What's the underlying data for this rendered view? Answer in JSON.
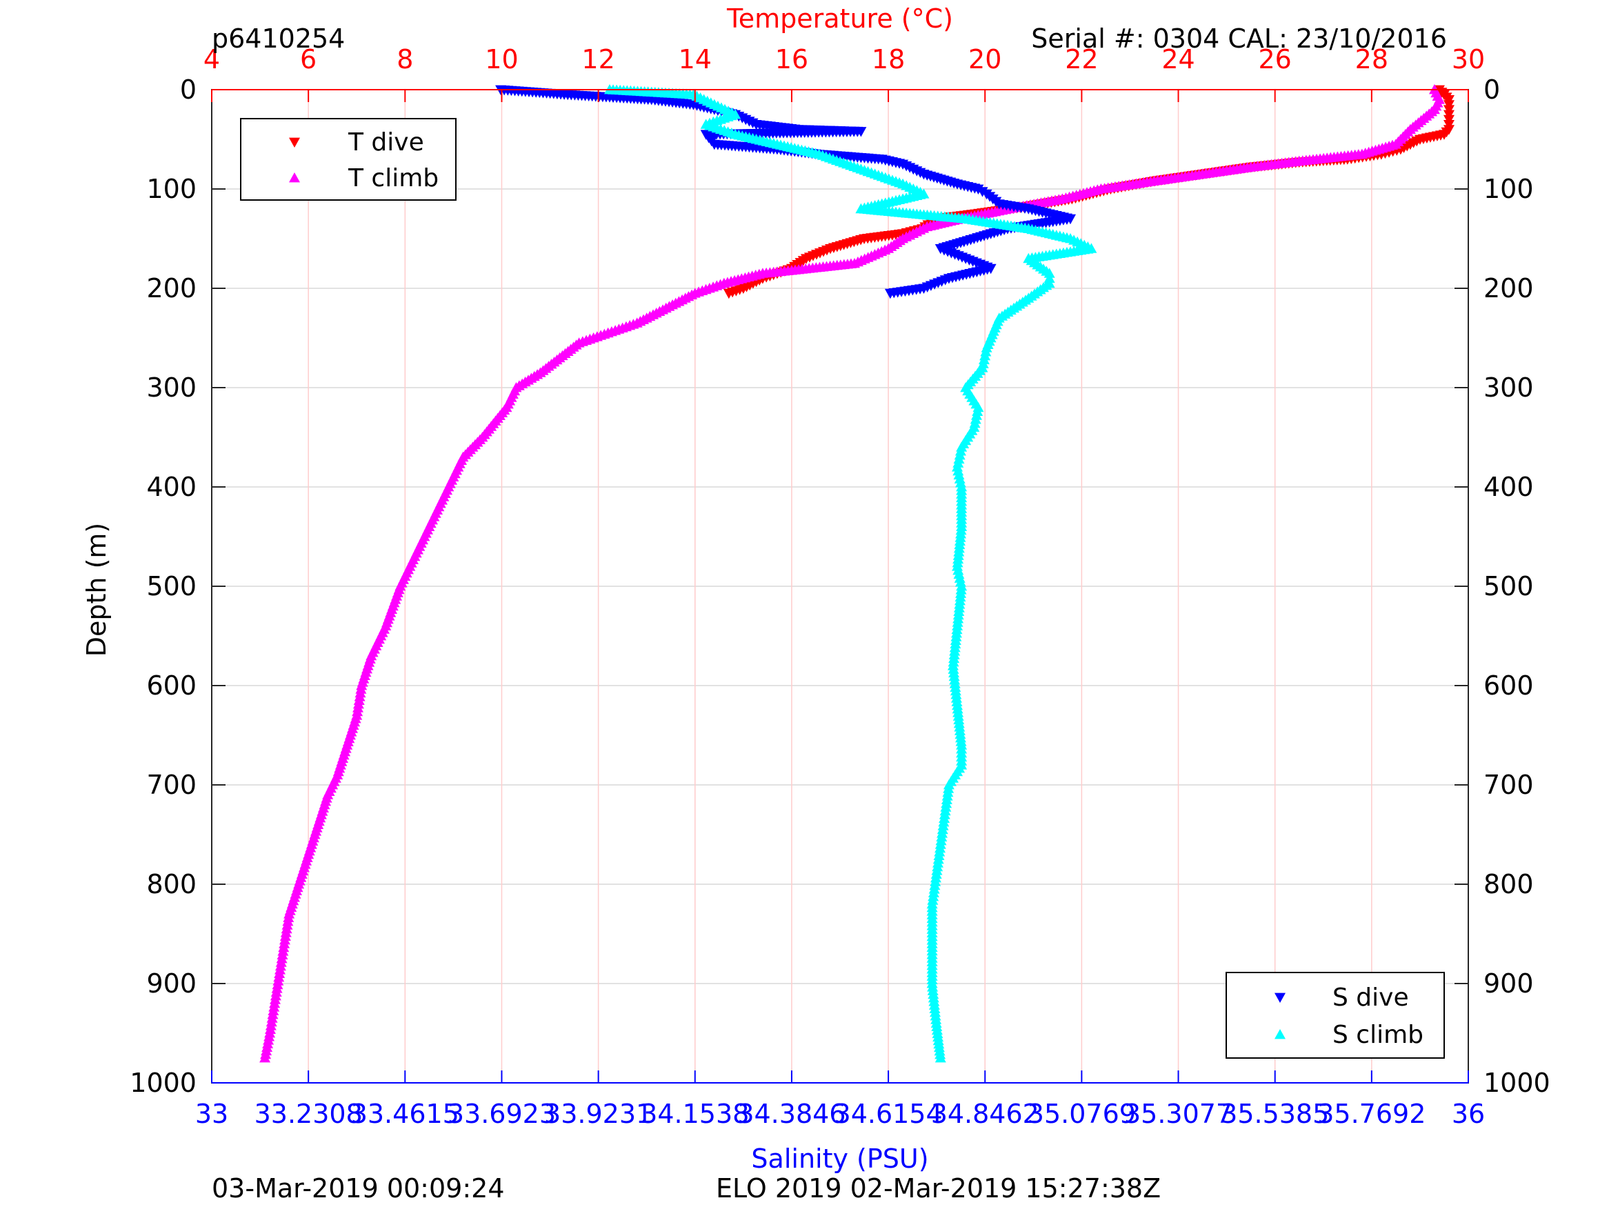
{
  "header": {
    "id": "p6410254",
    "serial": "Serial #: 0304  CAL: 23/10/2016"
  },
  "footer": {
    "left": "03-Mar-2019 00:09:24",
    "right": "ELO 2019 02-Mar-2019 15:27:38Z"
  },
  "colors": {
    "t_dive": "#ff0000",
    "t_climb": "#ff00ff",
    "s_dive": "#0000ff",
    "s_climb": "#00ffff",
    "temperature_axis": "#ff0000",
    "salinity_axis": "#0000ff"
  },
  "chart_data": {
    "type": "scatter",
    "y_axis": {
      "label": "Depth (m)",
      "range": [
        0,
        1000
      ],
      "reversed": true,
      "ticks": [
        0,
        100,
        200,
        300,
        400,
        500,
        600,
        700,
        800,
        900,
        1000
      ],
      "tick_labels": [
        "0",
        "100",
        "200",
        "300",
        "400",
        "500",
        "600",
        "700",
        "800",
        "900",
        "1000"
      ]
    },
    "temperature_axis": {
      "label": "Temperature (°C)",
      "position": "top",
      "range": [
        4,
        30
      ],
      "ticks": [
        4,
        6,
        8,
        10,
        12,
        14,
        16,
        18,
        20,
        22,
        24,
        26,
        28,
        30
      ],
      "tick_labels": [
        "4",
        "6",
        "8",
        "10",
        "12",
        "14",
        "16",
        "18",
        "20",
        "22",
        "24",
        "26",
        "28",
        "30"
      ]
    },
    "salinity_axis": {
      "label": "Salinity (PSU)",
      "position": "bottom",
      "range": [
        33,
        36
      ],
      "ticks": [
        33,
        33.2308,
        33.4615,
        33.6923,
        33.9231,
        34.1538,
        34.3846,
        34.6154,
        34.8462,
        35.0769,
        35.3077,
        35.5385,
        35.7692,
        36
      ],
      "tick_labels": [
        "33",
        "33.2308",
        "33.4615",
        "33.6923",
        "33.9231",
        "34.1538",
        "34.3846",
        "34.6154",
        "34.8462",
        "35.0769",
        "35.3077",
        "35.5385",
        "35.7692",
        "36"
      ]
    },
    "grid": true,
    "legends": [
      {
        "placement": "top-left",
        "entries": [
          "T dive",
          "T climb"
        ]
      },
      {
        "placement": "bottom-right",
        "entries": [
          "S dive",
          "S climb"
        ]
      }
    ],
    "series": [
      {
        "name": "T dive",
        "axis": "temperature",
        "marker": "triangle-down",
        "color": "#ff0000",
        "points": [
          [
            29.4,
            0
          ],
          [
            29.6,
            10
          ],
          [
            29.6,
            20
          ],
          [
            29.6,
            30
          ],
          [
            29.6,
            40
          ],
          [
            29.5,
            45
          ],
          [
            29.0,
            50
          ],
          [
            28.6,
            60
          ],
          [
            28.2,
            65
          ],
          [
            27.5,
            70
          ],
          [
            26.5,
            73
          ],
          [
            25.5,
            78
          ],
          [
            24.5,
            85
          ],
          [
            23.5,
            92
          ],
          [
            22.6,
            100
          ],
          [
            21.8,
            110
          ],
          [
            20.8,
            118
          ],
          [
            19.8,
            125
          ],
          [
            19.0,
            130
          ],
          [
            18.7,
            140
          ],
          [
            18.3,
            145
          ],
          [
            17.5,
            150
          ],
          [
            16.8,
            160
          ],
          [
            16.3,
            170
          ],
          [
            16.0,
            180
          ],
          [
            15.4,
            190
          ],
          [
            15.0,
            200
          ],
          [
            14.7,
            205
          ]
        ]
      },
      {
        "name": "T climb",
        "axis": "temperature",
        "marker": "triangle-up",
        "color": "#ff00ff",
        "points": [
          [
            29.3,
            0
          ],
          [
            29.4,
            10
          ],
          [
            29.3,
            20
          ],
          [
            28.8,
            40
          ],
          [
            28.5,
            55
          ],
          [
            27.8,
            65
          ],
          [
            26.5,
            72
          ],
          [
            25.5,
            78
          ],
          [
            24.5,
            85
          ],
          [
            23.5,
            92
          ],
          [
            22.4,
            100
          ],
          [
            21.6,
            110
          ],
          [
            20.5,
            120
          ],
          [
            19.5,
            130
          ],
          [
            18.8,
            138
          ],
          [
            18.3,
            150
          ],
          [
            18.0,
            160
          ],
          [
            17.3,
            175
          ],
          [
            16.0,
            182
          ],
          [
            15.4,
            185
          ],
          [
            14.6,
            195
          ],
          [
            14.0,
            205
          ],
          [
            13.4,
            220
          ],
          [
            12.8,
            235
          ],
          [
            12.2,
            245
          ],
          [
            11.6,
            255
          ],
          [
            11.2,
            270
          ],
          [
            10.8,
            285
          ],
          [
            10.3,
            300
          ],
          [
            10.1,
            320
          ],
          [
            9.6,
            350
          ],
          [
            9.2,
            370
          ],
          [
            8.9,
            400
          ],
          [
            8.5,
            440
          ],
          [
            8.1,
            480
          ],
          [
            7.9,
            500
          ],
          [
            7.6,
            540
          ],
          [
            7.3,
            570
          ],
          [
            7.1,
            600
          ],
          [
            7.0,
            630
          ],
          [
            6.8,
            660
          ],
          [
            6.6,
            690
          ],
          [
            6.4,
            710
          ],
          [
            6.2,
            740
          ],
          [
            6.0,
            770
          ],
          [
            5.8,
            800
          ],
          [
            5.6,
            830
          ],
          [
            5.5,
            860
          ],
          [
            5.4,
            890
          ],
          [
            5.3,
            920
          ],
          [
            5.2,
            950
          ],
          [
            5.1,
            975
          ]
        ]
      },
      {
        "name": "S dive",
        "axis": "salinity",
        "marker": "triangle-down",
        "color": "#0000ff",
        "points": [
          [
            33.69,
            0
          ],
          [
            33.85,
            5
          ],
          [
            34.05,
            10
          ],
          [
            34.15,
            15
          ],
          [
            34.25,
            25
          ],
          [
            34.3,
            35
          ],
          [
            34.4,
            40
          ],
          [
            34.55,
            42
          ],
          [
            34.18,
            45
          ],
          [
            34.2,
            55
          ],
          [
            34.35,
            60
          ],
          [
            34.45,
            65
          ],
          [
            34.6,
            70
          ],
          [
            34.65,
            75
          ],
          [
            34.7,
            85
          ],
          [
            34.78,
            95
          ],
          [
            34.83,
            100
          ],
          [
            34.85,
            105
          ],
          [
            34.88,
            115
          ],
          [
            34.95,
            120
          ],
          [
            35.0,
            125
          ],
          [
            35.05,
            130
          ],
          [
            34.9,
            140
          ],
          [
            34.82,
            150
          ],
          [
            34.74,
            160
          ],
          [
            34.8,
            170
          ],
          [
            34.86,
            180
          ],
          [
            34.76,
            190
          ],
          [
            34.7,
            200
          ],
          [
            34.62,
            205
          ]
        ]
      },
      {
        "name": "S climb",
        "axis": "salinity",
        "marker": "triangle-up",
        "color": "#00ffff",
        "points": [
          [
            33.95,
            0
          ],
          [
            34.15,
            5
          ],
          [
            34.2,
            15
          ],
          [
            34.25,
            25
          ],
          [
            34.18,
            35
          ],
          [
            34.25,
            45
          ],
          [
            34.35,
            55
          ],
          [
            34.45,
            65
          ],
          [
            34.55,
            80
          ],
          [
            34.65,
            95
          ],
          [
            34.7,
            105
          ],
          [
            34.55,
            120
          ],
          [
            34.8,
            130
          ],
          [
            34.95,
            140
          ],
          [
            35.05,
            150
          ],
          [
            35.1,
            160
          ],
          [
            34.95,
            170
          ],
          [
            35.0,
            185
          ],
          [
            35.0,
            195
          ],
          [
            34.95,
            210
          ],
          [
            34.88,
            230
          ],
          [
            34.85,
            260
          ],
          [
            34.84,
            280
          ],
          [
            34.8,
            300
          ],
          [
            34.83,
            320
          ],
          [
            34.82,
            340
          ],
          [
            34.79,
            360
          ],
          [
            34.78,
            380
          ],
          [
            34.79,
            400
          ],
          [
            34.79,
            440
          ],
          [
            34.78,
            480
          ],
          [
            34.79,
            500
          ],
          [
            34.78,
            540
          ],
          [
            34.77,
            580
          ],
          [
            34.78,
            620
          ],
          [
            34.79,
            660
          ],
          [
            34.79,
            680
          ],
          [
            34.76,
            700
          ],
          [
            34.75,
            730
          ],
          [
            34.74,
            760
          ],
          [
            34.73,
            790
          ],
          [
            34.72,
            820
          ],
          [
            34.72,
            860
          ],
          [
            34.72,
            900
          ],
          [
            34.73,
            940
          ],
          [
            34.74,
            975
          ]
        ]
      }
    ]
  }
}
